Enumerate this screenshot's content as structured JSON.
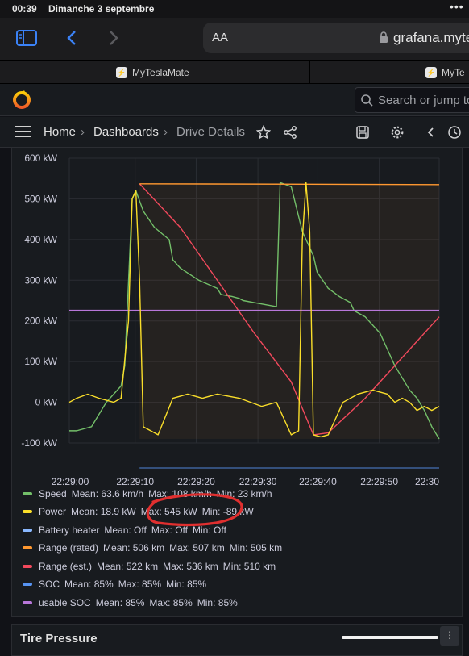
{
  "status_bar": {
    "time": "00:39",
    "date": "Dimanche 3 septembre",
    "dots": "•••"
  },
  "safari": {
    "text_size_label": "AA",
    "url": "grafana.myte"
  },
  "tabs": [
    {
      "label": "MyTeslaMate"
    },
    {
      "label": "MyTe"
    }
  ],
  "grafana": {
    "search_placeholder": "Search or jump to",
    "breadcrumb": {
      "home": "Home",
      "sep": "›",
      "dashboards": "Dashboards",
      "current": "Drive Details"
    }
  },
  "colors": {
    "speed": "#73bf69",
    "power": "#fade2a",
    "battery_heater": "#8ab8ff",
    "range_rated": "#ff9830",
    "range_est": "#f2495c",
    "soc": "#5794f2",
    "usable_soc": "#b877d9",
    "annotation": "#e02f2f"
  },
  "chart_data": {
    "type": "line",
    "title": "",
    "ylabel": "",
    "xlabel": "",
    "ylim": [
      -100,
      600
    ],
    "y_ticks": [
      "600 kW",
      "500 kW",
      "400 kW",
      "300 kW",
      "200 kW",
      "100 kW",
      "0 kW",
      "-100 kW"
    ],
    "x_ticks": [
      "22:29:00",
      "22:29:10",
      "22:29:20",
      "22:29:30",
      "22:29:40",
      "22:29:50",
      "22:30"
    ],
    "series": [
      {
        "name": "Speed",
        "x": [
          0,
          2,
          6,
          10,
          14,
          15,
          17,
          18,
          20,
          23,
          27,
          28,
          30,
          35,
          40,
          41,
          44,
          46,
          47,
          50,
          53,
          56,
          57,
          60,
          63,
          66,
          67,
          70,
          73,
          76,
          77,
          79,
          80,
          84,
          86,
          88,
          90,
          92,
          94,
          96,
          98,
          100
        ],
        "values": [
          -70,
          -70,
          -60,
          0,
          40,
          90,
          500,
          520,
          470,
          430,
          400,
          350,
          330,
          300,
          280,
          265,
          260,
          255,
          250,
          245,
          240,
          235,
          540,
          530,
          420,
          360,
          320,
          280,
          260,
          245,
          225,
          215,
          210,
          170,
          130,
          90,
          60,
          30,
          10,
          -20,
          -60,
          -90
        ]
      },
      {
        "name": "Power",
        "x": [
          0,
          2,
          5,
          8,
          12,
          14,
          16,
          17,
          18,
          19,
          20,
          22,
          24,
          28,
          32,
          36,
          40,
          46,
          52,
          56,
          58,
          60,
          62,
          63,
          64,
          65,
          66,
          68,
          70,
          74,
          78,
          82,
          86,
          88,
          90,
          92,
          94,
          96,
          98,
          100
        ],
        "values": [
          0,
          10,
          20,
          10,
          0,
          10,
          200,
          500,
          520,
          300,
          -60,
          -70,
          -80,
          10,
          20,
          10,
          20,
          10,
          -10,
          0,
          -40,
          -80,
          -70,
          400,
          540,
          420,
          -80,
          -85,
          -80,
          0,
          20,
          30,
          20,
          0,
          10,
          0,
          -20,
          -10,
          -20,
          -10
        ]
      },
      {
        "name": "Battery heater",
        "x": [
          0,
          100
        ],
        "values": [
          225,
          225
        ]
      },
      {
        "name": "Range (rated)",
        "x": [
          19,
          100
        ],
        "values": [
          537,
          535
        ]
      },
      {
        "name": "Range (est.)",
        "x": [
          19,
          30,
          40,
          50,
          60,
          66,
          70,
          80,
          90,
          100
        ],
        "values": [
          537,
          430,
          300,
          170,
          50,
          -80,
          -75,
          10,
          110,
          210
        ]
      },
      {
        "name": "SOC",
        "x": [
          0,
          100
        ],
        "values": [
          225,
          225
        ]
      },
      {
        "name": "usable SOC",
        "x": [
          0,
          100
        ],
        "values": [
          226,
          226
        ]
      }
    ]
  },
  "legend": [
    {
      "name": "Speed",
      "mean": "Mean: 63.6 km/h",
      "max": "Max: 108 km/h",
      "min": "Min: 23 km/h",
      "color_key": "speed"
    },
    {
      "name": "Power",
      "mean": "Mean: 18.9 kW",
      "max": "Max: 545 kW",
      "min": "Min: -89 kW",
      "color_key": "power"
    },
    {
      "name": "Battery heater",
      "mean": "Mean: Off",
      "max": "Max: Off",
      "min": "Min: Off",
      "color_key": "battery_heater"
    },
    {
      "name": "Range (rated)",
      "mean": "Mean: 506 km",
      "max": "Max: 507 km",
      "min": "Min: 505 km",
      "color_key": "range_rated"
    },
    {
      "name": "Range (est.)",
      "mean": "Mean: 522 km",
      "max": "Max: 536 km",
      "min": "Min: 510 km",
      "color_key": "range_est"
    },
    {
      "name": "SOC",
      "mean": "Mean: 85%",
      "max": "Max: 85%",
      "min": "Min: 85%",
      "color_key": "soc"
    },
    {
      "name": "usable SOC",
      "mean": "Mean: 85%",
      "max": "Max: 85%",
      "min": "Min: 85%",
      "color_key": "usable_soc"
    }
  ],
  "next_panel": {
    "title": "Tire Pressure",
    "handle": "⋮"
  }
}
